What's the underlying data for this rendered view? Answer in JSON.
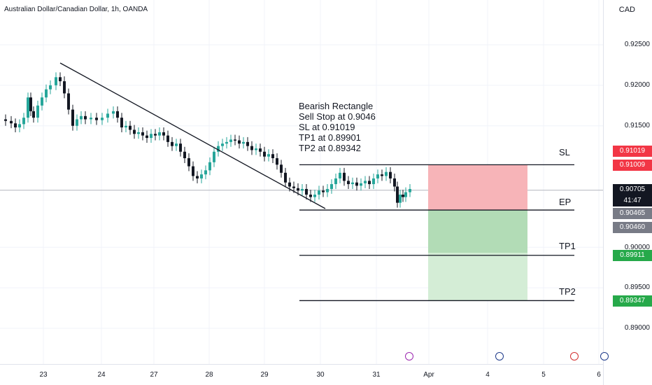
{
  "header": {
    "symbol_title": "Australian Dollar/Canadian Dollar, 1h, OANDA",
    "currency": "CAD"
  },
  "price_axis": {
    "ticks": [
      "0.92500",
      "0.92000",
      "0.91500",
      "0.90000",
      "0.89500",
      "0.89000"
    ],
    "tick_values": [
      0.925,
      0.92,
      0.915,
      0.9,
      0.895,
      0.89
    ]
  },
  "badges": {
    "sl_top": {
      "label": "0.91019",
      "color": "#f23645"
    },
    "sl_bottom": {
      "label": "0.91009",
      "color": "#f23645"
    },
    "current": {
      "label": "0.90705",
      "color": "#131722"
    },
    "countdown": {
      "label": "41:47",
      "color": "#131722"
    },
    "ep_top": {
      "label": "0.90465",
      "color": "#787b86"
    },
    "ep_bottom": {
      "label": "0.90460",
      "color": "#787b86"
    },
    "tp1": {
      "label": "0.89911",
      "color": "#26a94a"
    },
    "tp2": {
      "label": "0.89347",
      "color": "#26a94a"
    }
  },
  "time_axis": {
    "labels": [
      "23",
      "24",
      "27",
      "28",
      "29",
      "30",
      "31",
      "Apr",
      "4",
      "5",
      "6"
    ]
  },
  "annotation": {
    "lines": [
      "Bearish Rectangle",
      "Sell Stop at 0.9046",
      "SL at 0.91019",
      "TP1 at 0.89901",
      "TP2 at 0.89342"
    ]
  },
  "levels": {
    "sl": {
      "label": "SL",
      "price": 0.91019
    },
    "ep": {
      "label": "EP",
      "price": 0.9046
    },
    "tp1": {
      "label": "TP1",
      "price": 0.89901
    },
    "tp2": {
      "label": "TP2",
      "price": 0.89342
    }
  },
  "zones": {
    "loss_color": "#f7b4b8",
    "profit_color": "#b2dcb6",
    "profit_light_color": "#d4edd6"
  },
  "events": [
    {
      "icon": "lightning-icon",
      "color": "#9c27b0"
    },
    {
      "icon": "flag-au-icon",
      "color": "#1e3a8a"
    },
    {
      "icon": "flag-ca-icon",
      "color": "#d32f2f"
    },
    {
      "icon": "flag-au-icon",
      "color": "#1e3a8a"
    }
  ],
  "colors": {
    "bull": "#26a69a",
    "bear": "#131722",
    "grid": "#f0f3fa"
  }
}
